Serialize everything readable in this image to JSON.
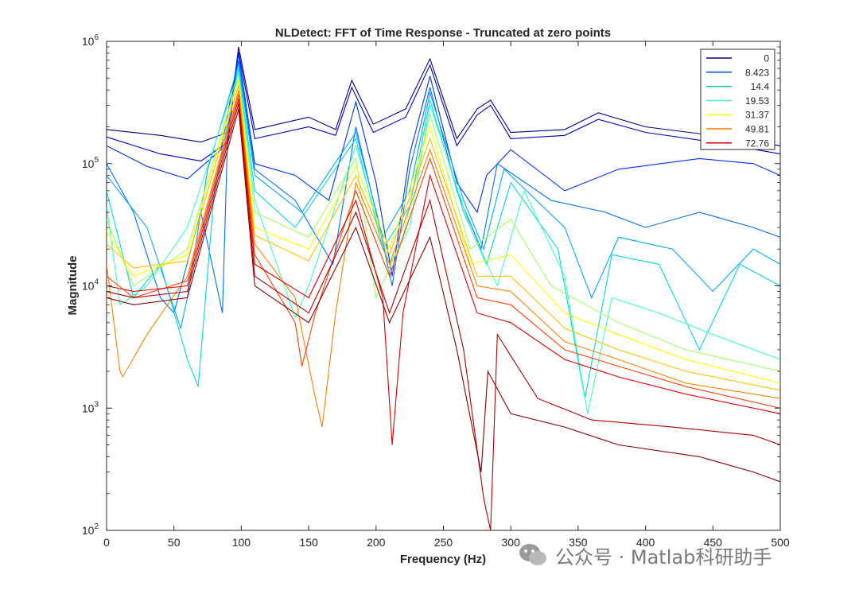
{
  "chart_data": {
    "type": "line",
    "title": "NLDetect: FFT of Time Response - Truncated at zero points",
    "xlabel": "Frequency (Hz)",
    "ylabel": "Magnitude",
    "xlim": [
      0,
      500
    ],
    "ylim": [
      100,
      1000000
    ],
    "yscale": "log",
    "x_ticks": [
      "0",
      "50",
      "100",
      "150",
      "200",
      "250",
      "300",
      "350",
      "400",
      "450",
      "500"
    ],
    "y_ticks": [
      {
        "base": "10",
        "exp": "2",
        "value": 100
      },
      {
        "base": "10",
        "exp": "3",
        "value": 1000
      },
      {
        "base": "10",
        "exp": "4",
        "value": 10000
      },
      {
        "base": "10",
        "exp": "5",
        "value": 100000
      },
      {
        "base": "10",
        "exp": "6",
        "value": 1000000
      }
    ],
    "grid": false,
    "legend_position": "top-right",
    "legend": [
      {
        "label": "0",
        "color": "#00008f"
      },
      {
        "label": "8.423",
        "color": "#0050ff"
      },
      {
        "label": "14.4",
        "color": "#00c0c0"
      },
      {
        "label": "19.53",
        "color": "#40ffbf"
      },
      {
        "label": "31.37",
        "color": "#ffff00"
      },
      {
        "label": "49.81",
        "color": "#ff8000"
      },
      {
        "label": "72.76",
        "color": "#e00000"
      }
    ],
    "series": [
      {
        "color": "#00008f",
        "points": [
          [
            0,
            190000
          ],
          [
            40,
            170000
          ],
          [
            70,
            150000
          ],
          [
            90,
            180000
          ],
          [
            98,
            900000
          ],
          [
            110,
            190000
          ],
          [
            150,
            240000
          ],
          [
            170,
            190000
          ],
          [
            182,
            480000
          ],
          [
            198,
            210000
          ],
          [
            222,
            280000
          ],
          [
            240,
            720000
          ],
          [
            260,
            160000
          ],
          [
            275,
            280000
          ],
          [
            285,
            330000
          ],
          [
            300,
            180000
          ],
          [
            340,
            190000
          ],
          [
            365,
            260000
          ],
          [
            400,
            200000
          ],
          [
            450,
            170000
          ],
          [
            500,
            140000
          ]
        ]
      },
      {
        "color": "#0000c8",
        "points": [
          [
            0,
            165000
          ],
          [
            40,
            120000
          ],
          [
            70,
            105000
          ],
          [
            90,
            150000
          ],
          [
            98,
            820000
          ],
          [
            110,
            160000
          ],
          [
            150,
            200000
          ],
          [
            170,
            170000
          ],
          [
            182,
            420000
          ],
          [
            198,
            180000
          ],
          [
            222,
            240000
          ],
          [
            240,
            640000
          ],
          [
            260,
            140000
          ],
          [
            275,
            250000
          ],
          [
            285,
            300000
          ],
          [
            300,
            160000
          ],
          [
            340,
            170000
          ],
          [
            365,
            230000
          ],
          [
            400,
            180000
          ],
          [
            450,
            150000
          ],
          [
            500,
            120000
          ]
        ]
      },
      {
        "color": "#0030ff",
        "points": [
          [
            0,
            140000
          ],
          [
            30,
            95000
          ],
          [
            60,
            75000
          ],
          [
            85,
            130000
          ],
          [
            98,
            780000
          ],
          [
            110,
            100000
          ],
          [
            140,
            80000
          ],
          [
            165,
            50000
          ],
          [
            185,
            320000
          ],
          [
            200,
            70000
          ],
          [
            212,
            12000
          ],
          [
            225,
            120000
          ],
          [
            240,
            520000
          ],
          [
            260,
            70000
          ],
          [
            275,
            40000
          ],
          [
            282,
            80000
          ],
          [
            300,
            130000
          ],
          [
            340,
            60000
          ],
          [
            380,
            90000
          ],
          [
            440,
            110000
          ],
          [
            480,
            100000
          ],
          [
            500,
            80000
          ]
        ]
      },
      {
        "color": "#0070ff",
        "points": [
          [
            0,
            100000
          ],
          [
            20,
            40000
          ],
          [
            40,
            8000
          ],
          [
            50,
            6000
          ],
          [
            70,
            40000
          ],
          [
            86,
            6000
          ],
          [
            90,
            200000
          ],
          [
            98,
            700000
          ],
          [
            110,
            90000
          ],
          [
            140,
            50000
          ],
          [
            168,
            15000
          ],
          [
            185,
            200000
          ],
          [
            200,
            40000
          ],
          [
            212,
            10000
          ],
          [
            225,
            90000
          ],
          [
            240,
            420000
          ],
          [
            260,
            60000
          ],
          [
            278,
            20000
          ],
          [
            290,
            100000
          ],
          [
            330,
            50000
          ],
          [
            370,
            40000
          ],
          [
            400,
            30000
          ],
          [
            440,
            40000
          ],
          [
            480,
            30000
          ],
          [
            500,
            25000
          ]
        ]
      },
      {
        "color": "#00a8ff",
        "points": [
          [
            0,
            80000
          ],
          [
            30,
            30000
          ],
          [
            55,
            4500
          ],
          [
            60,
            8000
          ],
          [
            75,
            90000
          ],
          [
            98,
            650000
          ],
          [
            110,
            80000
          ],
          [
            145,
            40000
          ],
          [
            185,
            180000
          ],
          [
            205,
            25000
          ],
          [
            225,
            60000
          ],
          [
            240,
            380000
          ],
          [
            265,
            50000
          ],
          [
            280,
            20000
          ],
          [
            295,
            90000
          ],
          [
            340,
            30000
          ],
          [
            360,
            8000
          ],
          [
            380,
            25000
          ],
          [
            420,
            20000
          ],
          [
            450,
            9000
          ],
          [
            480,
            20000
          ],
          [
            500,
            15000
          ]
        ]
      },
      {
        "color": "#00d8e8",
        "points": [
          [
            0,
            60000
          ],
          [
            20,
            8000
          ],
          [
            40,
            15000
          ],
          [
            60,
            2500
          ],
          [
            68,
            1500
          ],
          [
            80,
            60000
          ],
          [
            98,
            600000
          ],
          [
            110,
            60000
          ],
          [
            140,
            30000
          ],
          [
            185,
            160000
          ],
          [
            205,
            20000
          ],
          [
            225,
            45000
          ],
          [
            240,
            330000
          ],
          [
            265,
            40000
          ],
          [
            282,
            15000
          ],
          [
            300,
            70000
          ],
          [
            335,
            20000
          ],
          [
            355,
            1200
          ],
          [
            375,
            18000
          ],
          [
            410,
            15000
          ],
          [
            440,
            3000
          ],
          [
            470,
            15000
          ],
          [
            500,
            10000
          ]
        ]
      },
      {
        "color": "#40ffbf",
        "points": [
          [
            0,
            45000
          ],
          [
            10,
            7000
          ],
          [
            30,
            10000
          ],
          [
            60,
            30000
          ],
          [
            98,
            560000
          ],
          [
            110,
            50000
          ],
          [
            140,
            5500
          ],
          [
            150,
            10000
          ],
          [
            185,
            140000
          ],
          [
            210,
            15000
          ],
          [
            225,
            30000
          ],
          [
            240,
            300000
          ],
          [
            270,
            30000
          ],
          [
            290,
            10000
          ],
          [
            310,
            60000
          ],
          [
            340,
            12000
          ],
          [
            357,
            900
          ],
          [
            375,
            8000
          ],
          [
            410,
            6000
          ],
          [
            450,
            4000
          ],
          [
            500,
            2500
          ]
        ]
      },
      {
        "color": "#a0ff60",
        "points": [
          [
            0,
            35000
          ],
          [
            20,
            10000
          ],
          [
            60,
            20000
          ],
          [
            98,
            520000
          ],
          [
            110,
            40000
          ],
          [
            150,
            25000
          ],
          [
            185,
            110000
          ],
          [
            200,
            8000
          ],
          [
            220,
            25000
          ],
          [
            240,
            250000
          ],
          [
            270,
            20000
          ],
          [
            300,
            35000
          ],
          [
            330,
            10000
          ],
          [
            380,
            5000
          ],
          [
            430,
            3000
          ],
          [
            500,
            2000
          ]
        ]
      },
      {
        "color": "#ffff00",
        "points": [
          [
            0,
            28000
          ],
          [
            20,
            12000
          ],
          [
            60,
            18000
          ],
          [
            98,
            480000
          ],
          [
            110,
            30000
          ],
          [
            150,
            20000
          ],
          [
            185,
            95000
          ],
          [
            210,
            20000
          ],
          [
            240,
            200000
          ],
          [
            270,
            15000
          ],
          [
            300,
            18000
          ],
          [
            340,
            6000
          ],
          [
            380,
            4000
          ],
          [
            430,
            2500
          ],
          [
            500,
            1600
          ]
        ]
      },
      {
        "color": "#ffc000",
        "points": [
          [
            0,
            22000
          ],
          [
            20,
            14000
          ],
          [
            60,
            16000
          ],
          [
            98,
            440000
          ],
          [
            110,
            26000
          ],
          [
            150,
            16000
          ],
          [
            185,
            80000
          ],
          [
            210,
            18000
          ],
          [
            240,
            160000
          ],
          [
            275,
            12000
          ],
          [
            300,
            12000
          ],
          [
            340,
            4500
          ],
          [
            380,
            3000
          ],
          [
            430,
            2000
          ],
          [
            500,
            1400
          ]
        ]
      },
      {
        "color": "#ff8000",
        "points": [
          [
            0,
            15000
          ],
          [
            10,
            2000
          ],
          [
            12,
            1800
          ],
          [
            30,
            4000
          ],
          [
            60,
            12000
          ],
          [
            98,
            400000
          ],
          [
            110,
            22000
          ],
          [
            140,
            8000
          ],
          [
            155,
            1200
          ],
          [
            160,
            700
          ],
          [
            170,
            6000
          ],
          [
            185,
            70000
          ],
          [
            210,
            15000
          ],
          [
            240,
            130000
          ],
          [
            275,
            10000
          ],
          [
            300,
            9000
          ],
          [
            340,
            3500
          ],
          [
            380,
            2500
          ],
          [
            430,
            1600
          ],
          [
            500,
            1200
          ]
        ]
      },
      {
        "color": "#ff4000",
        "points": [
          [
            0,
            12000
          ],
          [
            20,
            8000
          ],
          [
            60,
            11000
          ],
          [
            98,
            370000
          ],
          [
            110,
            18000
          ],
          [
            140,
            5000
          ],
          [
            145,
            2200
          ],
          [
            155,
            6000
          ],
          [
            185,
            60000
          ],
          [
            210,
            12000
          ],
          [
            240,
            110000
          ],
          [
            275,
            8000
          ],
          [
            300,
            7000
          ],
          [
            340,
            3000
          ],
          [
            380,
            2200
          ],
          [
            430,
            1500
          ],
          [
            500,
            1000
          ]
        ]
      },
      {
        "color": "#e00000",
        "points": [
          [
            0,
            10000
          ],
          [
            20,
            9000
          ],
          [
            60,
            10000
          ],
          [
            98,
            340000
          ],
          [
            110,
            15000
          ],
          [
            150,
            8000
          ],
          [
            185,
            50000
          ],
          [
            205,
            8000
          ],
          [
            212,
            500
          ],
          [
            220,
            6000
          ],
          [
            240,
            80000
          ],
          [
            275,
            6000
          ],
          [
            300,
            5000
          ],
          [
            340,
            2500
          ],
          [
            380,
            1800
          ],
          [
            430,
            1300
          ],
          [
            500,
            900
          ]
        ]
      },
      {
        "color": "#b40000",
        "points": [
          [
            0,
            9000
          ],
          [
            20,
            8000
          ],
          [
            60,
            9000
          ],
          [
            98,
            310000
          ],
          [
            110,
            12000
          ],
          [
            150,
            6000
          ],
          [
            185,
            40000
          ],
          [
            210,
            6000
          ],
          [
            240,
            50000
          ],
          [
            265,
            3000
          ],
          [
            280,
            180
          ],
          [
            285,
            100
          ],
          [
            290,
            4000
          ],
          [
            320,
            1200
          ],
          [
            360,
            800
          ],
          [
            420,
            700
          ],
          [
            480,
            600
          ],
          [
            500,
            500
          ]
        ]
      },
      {
        "color": "#8a0000",
        "points": [
          [
            0,
            8000
          ],
          [
            20,
            7000
          ],
          [
            60,
            8000
          ],
          [
            98,
            280000
          ],
          [
            110,
            10000
          ],
          [
            150,
            5000
          ],
          [
            185,
            30000
          ],
          [
            210,
            5000
          ],
          [
            240,
            25000
          ],
          [
            260,
            3000
          ],
          [
            278,
            300
          ],
          [
            283,
            2000
          ],
          [
            300,
            900
          ],
          [
            340,
            700
          ],
          [
            380,
            500
          ],
          [
            440,
            400
          ],
          [
            480,
            300
          ],
          [
            500,
            250
          ]
        ]
      }
    ]
  }
}
